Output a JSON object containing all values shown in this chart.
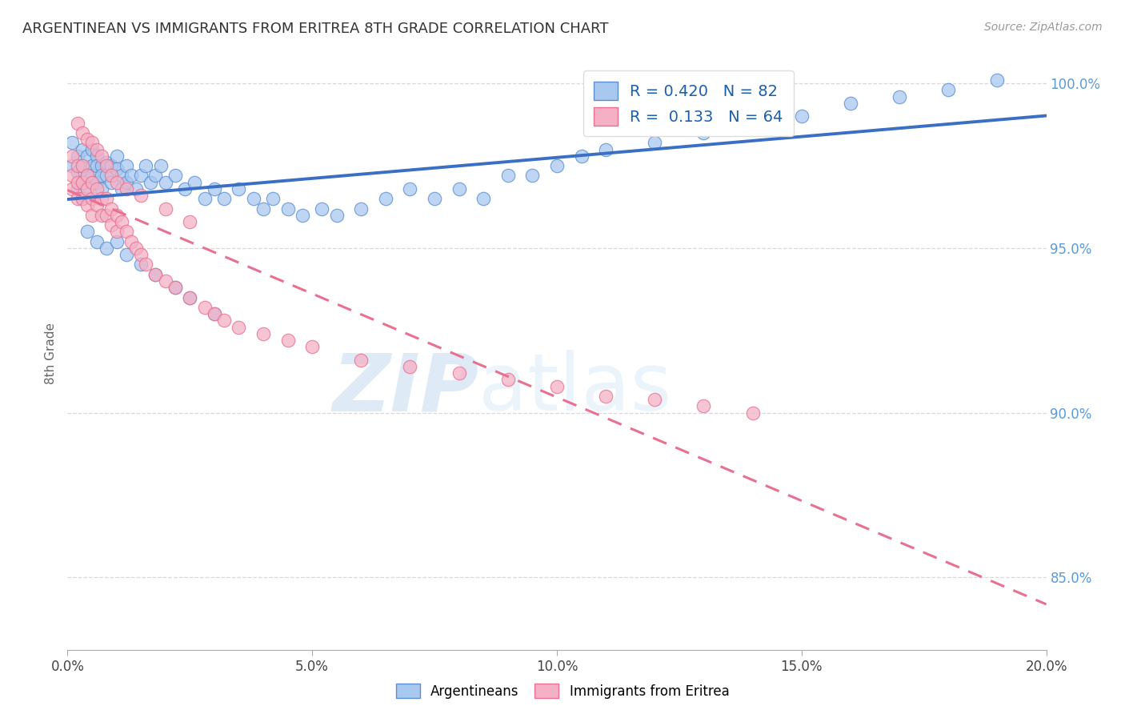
{
  "title": "ARGENTINEAN VS IMMIGRANTS FROM ERITREA 8TH GRADE CORRELATION CHART",
  "source": "Source: ZipAtlas.com",
  "ylabel": "8th Grade",
  "xlim": [
    0.0,
    0.2
  ],
  "ylim": [
    0.828,
    1.008
  ],
  "ytick_labels": [
    "85.0%",
    "90.0%",
    "95.0%",
    "100.0%"
  ],
  "ytick_values": [
    0.85,
    0.9,
    0.95,
    1.0
  ],
  "xtick_labels": [
    "0.0%",
    "5.0%",
    "10.0%",
    "15.0%",
    "20.0%"
  ],
  "xtick_values": [
    0.0,
    0.05,
    0.1,
    0.15,
    0.2
  ],
  "blue_R": 0.42,
  "blue_N": 82,
  "pink_R": 0.133,
  "pink_N": 64,
  "blue_color": "#A8C8F0",
  "pink_color": "#F5B0C5",
  "blue_edge_color": "#5A8FD0",
  "pink_edge_color": "#E87090",
  "blue_line_color": "#3A6FC4",
  "pink_line_color": "#E87090",
  "blue_scatter_x": [
    0.001,
    0.001,
    0.002,
    0.002,
    0.002,
    0.003,
    0.003,
    0.003,
    0.003,
    0.004,
    0.004,
    0.004,
    0.005,
    0.005,
    0.005,
    0.006,
    0.006,
    0.006,
    0.007,
    0.007,
    0.007,
    0.008,
    0.008,
    0.009,
    0.009,
    0.01,
    0.01,
    0.011,
    0.011,
    0.012,
    0.012,
    0.013,
    0.014,
    0.015,
    0.016,
    0.017,
    0.018,
    0.019,
    0.02,
    0.022,
    0.024,
    0.026,
    0.028,
    0.03,
    0.032,
    0.035,
    0.038,
    0.04,
    0.042,
    0.045,
    0.048,
    0.052,
    0.055,
    0.06,
    0.065,
    0.07,
    0.075,
    0.08,
    0.085,
    0.09,
    0.095,
    0.1,
    0.105,
    0.11,
    0.12,
    0.13,
    0.14,
    0.15,
    0.16,
    0.17,
    0.18,
    0.19,
    0.004,
    0.006,
    0.008,
    0.01,
    0.012,
    0.015,
    0.018,
    0.022,
    0.025,
    0.03
  ],
  "blue_scatter_y": [
    0.982,
    0.975,
    0.978,
    0.973,
    0.968,
    0.98,
    0.975,
    0.97,
    0.965,
    0.978,
    0.972,
    0.968,
    0.98,
    0.975,
    0.972,
    0.978,
    0.975,
    0.97,
    0.975,
    0.972,
    0.968,
    0.976,
    0.972,
    0.975,
    0.97,
    0.978,
    0.974,
    0.972,
    0.968,
    0.975,
    0.97,
    0.972,
    0.968,
    0.972,
    0.975,
    0.97,
    0.972,
    0.975,
    0.97,
    0.972,
    0.968,
    0.97,
    0.965,
    0.968,
    0.965,
    0.968,
    0.965,
    0.962,
    0.965,
    0.962,
    0.96,
    0.962,
    0.96,
    0.962,
    0.965,
    0.968,
    0.965,
    0.968,
    0.965,
    0.972,
    0.972,
    0.975,
    0.978,
    0.98,
    0.982,
    0.985,
    0.988,
    0.99,
    0.994,
    0.996,
    0.998,
    1.001,
    0.955,
    0.952,
    0.95,
    0.952,
    0.948,
    0.945,
    0.942,
    0.938,
    0.935,
    0.93
  ],
  "pink_scatter_x": [
    0.001,
    0.001,
    0.001,
    0.002,
    0.002,
    0.002,
    0.003,
    0.003,
    0.003,
    0.004,
    0.004,
    0.004,
    0.005,
    0.005,
    0.005,
    0.006,
    0.006,
    0.007,
    0.007,
    0.008,
    0.008,
    0.009,
    0.009,
    0.01,
    0.01,
    0.011,
    0.012,
    0.013,
    0.014,
    0.015,
    0.016,
    0.018,
    0.02,
    0.022,
    0.025,
    0.028,
    0.03,
    0.032,
    0.035,
    0.04,
    0.045,
    0.05,
    0.06,
    0.07,
    0.08,
    0.09,
    0.1,
    0.11,
    0.12,
    0.13,
    0.14,
    0.002,
    0.003,
    0.004,
    0.005,
    0.006,
    0.007,
    0.008,
    0.009,
    0.01,
    0.012,
    0.015,
    0.02,
    0.025
  ],
  "pink_scatter_y": [
    0.978,
    0.972,
    0.968,
    0.975,
    0.97,
    0.965,
    0.975,
    0.97,
    0.965,
    0.972,
    0.968,
    0.963,
    0.97,
    0.965,
    0.96,
    0.968,
    0.963,
    0.965,
    0.96,
    0.965,
    0.96,
    0.962,
    0.957,
    0.96,
    0.955,
    0.958,
    0.955,
    0.952,
    0.95,
    0.948,
    0.945,
    0.942,
    0.94,
    0.938,
    0.935,
    0.932,
    0.93,
    0.928,
    0.926,
    0.924,
    0.922,
    0.92,
    0.916,
    0.914,
    0.912,
    0.91,
    0.908,
    0.905,
    0.904,
    0.902,
    0.9,
    0.988,
    0.985,
    0.983,
    0.982,
    0.98,
    0.978,
    0.975,
    0.972,
    0.97,
    0.968,
    0.966,
    0.962,
    0.958
  ],
  "watermark_zip": "ZIP",
  "watermark_atlas": "atlas",
  "background_color": "#ffffff",
  "grid_color": "#d8d8d8"
}
